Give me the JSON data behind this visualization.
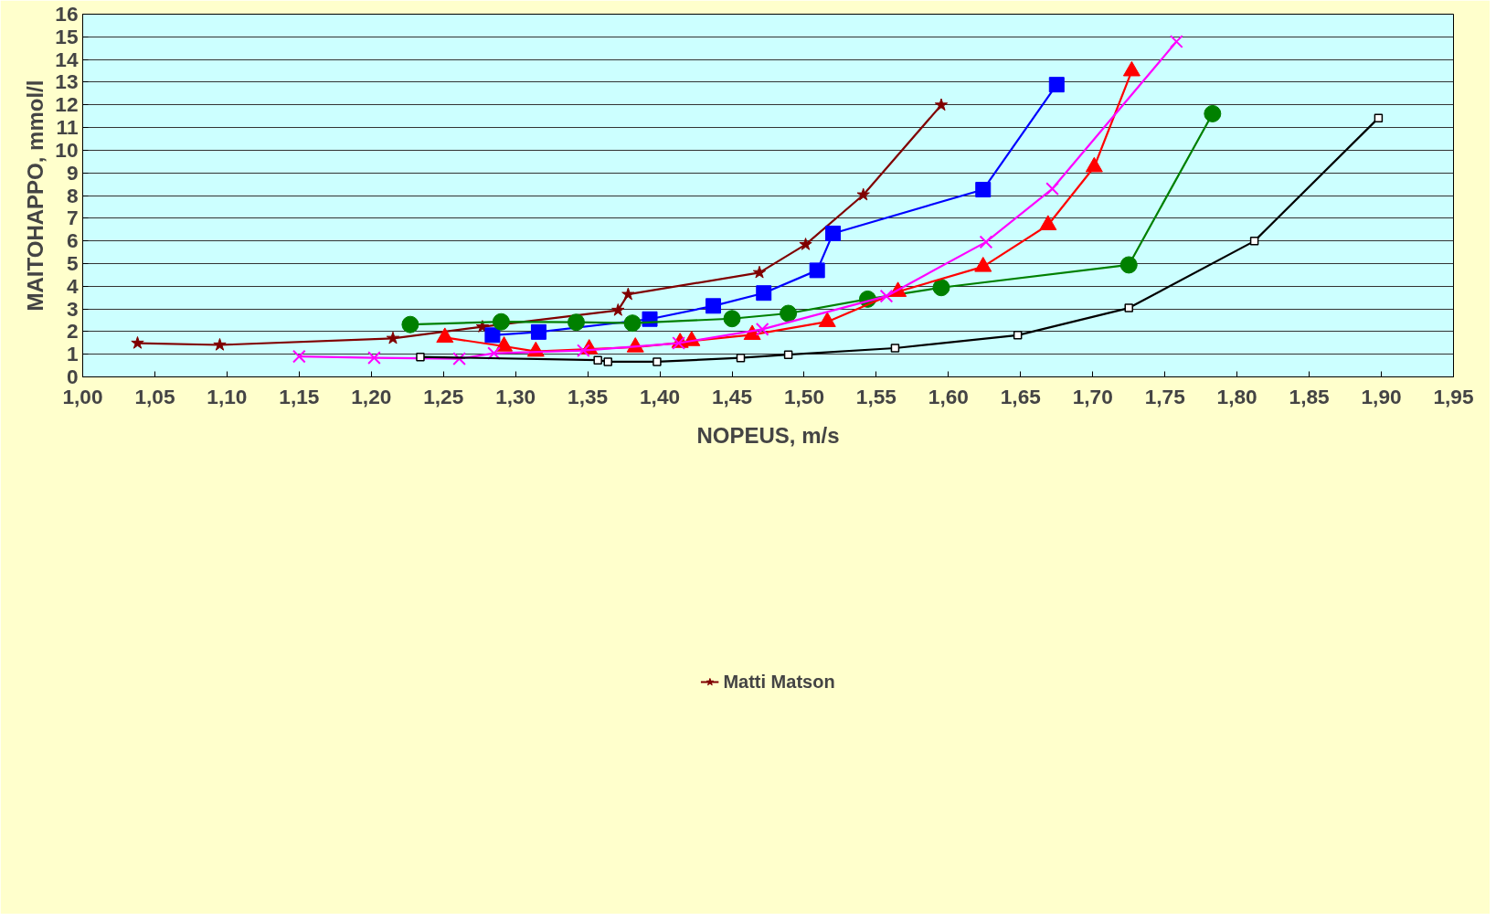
{
  "chart_data": {
    "type": "line",
    "xlabel": "NOPEUS, m/s",
    "ylabel": "MAITOHAPPO, mmol/l",
    "xlim": [
      1.0,
      1.95
    ],
    "ylim": [
      0,
      16
    ],
    "xticks": [
      {
        "value": 1.0,
        "label": "1,00"
      },
      {
        "value": 1.05,
        "label": "1,05"
      },
      {
        "value": 1.1,
        "label": "1,10"
      },
      {
        "value": 1.15,
        "label": "1,15"
      },
      {
        "value": 1.2,
        "label": "1,20"
      },
      {
        "value": 1.25,
        "label": "1,25"
      },
      {
        "value": 1.3,
        "label": "1,30"
      },
      {
        "value": 1.35,
        "label": "1,35"
      },
      {
        "value": 1.4,
        "label": "1,40"
      },
      {
        "value": 1.45,
        "label": "1,45"
      },
      {
        "value": 1.5,
        "label": "1,50"
      },
      {
        "value": 1.55,
        "label": "1,55"
      },
      {
        "value": 1.6,
        "label": "1,60"
      },
      {
        "value": 1.65,
        "label": "1,65"
      },
      {
        "value": 1.7,
        "label": "1,70"
      },
      {
        "value": 1.75,
        "label": "1,75"
      },
      {
        "value": 1.8,
        "label": "1,80"
      },
      {
        "value": 1.85,
        "label": "1,85"
      },
      {
        "value": 1.9,
        "label": "1,90"
      },
      {
        "value": 1.95,
        "label": "1,95"
      }
    ],
    "yticks": [
      0,
      1,
      2,
      3,
      4,
      5,
      6,
      7,
      8,
      9,
      10,
      11,
      12,
      13,
      14,
      15,
      16
    ],
    "grid": "y",
    "legend": "bottom",
    "series": [
      {
        "name": "Matti Matson",
        "color": "#800000",
        "marker": "star",
        "x": [
          1.038,
          1.095,
          1.215,
          1.277,
          1.371,
          1.378,
          1.469,
          1.501,
          1.541,
          1.595
        ],
        "values": [
          1.49,
          1.41,
          1.7,
          2.21,
          2.94,
          3.64,
          4.6,
          5.84,
          8.03,
          11.99
        ]
      },
      {
        "color": "#0000ff",
        "marker": "square",
        "x": [
          1.284,
          1.316,
          1.393,
          1.437,
          1.472,
          1.509,
          1.52,
          1.624,
          1.675
        ],
        "values": [
          1.84,
          1.98,
          2.55,
          3.13,
          3.7,
          4.7,
          6.33,
          8.26,
          12.89
        ]
      },
      {
        "color": "#008000",
        "marker": "circle",
        "x": [
          1.227,
          1.29,
          1.342,
          1.381,
          1.45,
          1.489,
          1.544,
          1.595,
          1.725,
          1.783
        ],
        "values": [
          2.31,
          2.43,
          2.41,
          2.37,
          2.57,
          2.8,
          3.43,
          3.94,
          4.94,
          11.61
        ]
      },
      {
        "color": "#ff0000",
        "marker": "triangle",
        "x": [
          1.251,
          1.292,
          1.314,
          1.351,
          1.383,
          1.414,
          1.422,
          1.464,
          1.516,
          1.565,
          1.624,
          1.669,
          1.701,
          1.727
        ],
        "values": [
          1.74,
          1.35,
          1.12,
          1.23,
          1.31,
          1.51,
          1.59,
          1.86,
          2.43,
          3.76,
          4.86,
          6.7,
          9.26,
          13.49
        ]
      },
      {
        "color": "#ff00ff",
        "marker": "cross",
        "x": [
          1.15,
          1.202,
          1.261,
          1.285,
          1.347,
          1.413,
          1.471,
          1.557,
          1.626,
          1.672,
          1.758
        ],
        "values": [
          0.9,
          0.84,
          0.8,
          1.04,
          1.16,
          1.49,
          2.1,
          3.56,
          5.95,
          8.3,
          14.79
        ]
      },
      {
        "color": "#000000",
        "marker": "square",
        "x": [
          1.234,
          1.357,
          1.364,
          1.398,
          1.456,
          1.489,
          1.563,
          1.648,
          1.725,
          1.812,
          1.898
        ],
        "values": [
          0.88,
          0.74,
          0.67,
          0.67,
          0.84,
          0.98,
          1.27,
          1.84,
          3.04,
          5.99,
          11.42
        ]
      }
    ]
  }
}
